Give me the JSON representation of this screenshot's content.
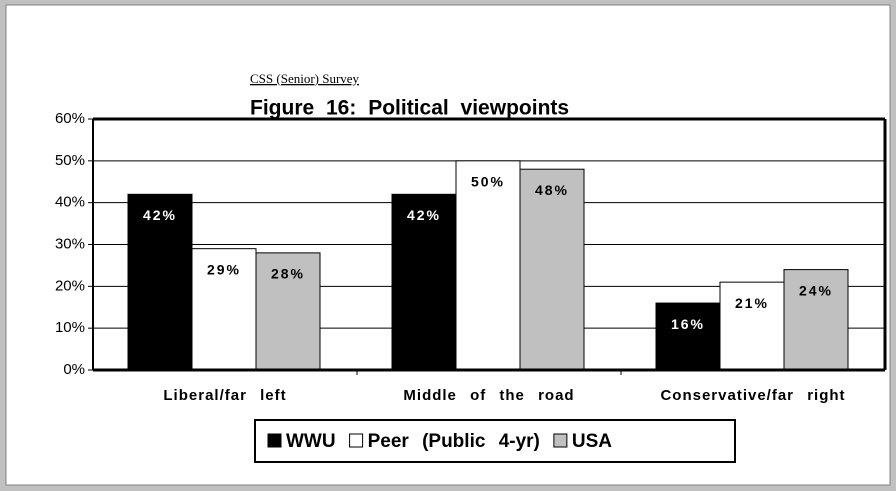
{
  "chart_data": {
    "type": "bar",
    "subtitle": "CSS (Senior) Survey",
    "title": "Figure 16: Political viewpoints",
    "categories": [
      "Liberal/far left",
      "Middle of the road",
      "Conservative/far right"
    ],
    "series": [
      {
        "name": "WWU",
        "color": "#000000",
        "values": [
          42,
          42,
          16
        ],
        "value_labels": [
          "42%",
          "42%",
          "16%"
        ]
      },
      {
        "name": "Peer (Public 4-yr)",
        "color": "#ffffff",
        "values": [
          29,
          50,
          21
        ],
        "value_labels": [
          "29%",
          "50%",
          "21%"
        ]
      },
      {
        "name": "USA",
        "color": "#c0c0c0",
        "values": [
          28,
          48,
          24
        ],
        "value_labels": [
          "28%",
          "48%",
          "24%"
        ]
      }
    ],
    "ylim": [
      0,
      60
    ],
    "yticks": [
      {
        "value": 0,
        "label": "0%"
      },
      {
        "value": 10,
        "label": "10%"
      },
      {
        "value": 20,
        "label": "20%"
      },
      {
        "value": 30,
        "label": "30%"
      },
      {
        "value": 40,
        "label": "40%"
      },
      {
        "value": 50,
        "label": "50%"
      },
      {
        "value": 60,
        "label": "60%"
      }
    ],
    "grid": true,
    "legend": "bottom"
  }
}
